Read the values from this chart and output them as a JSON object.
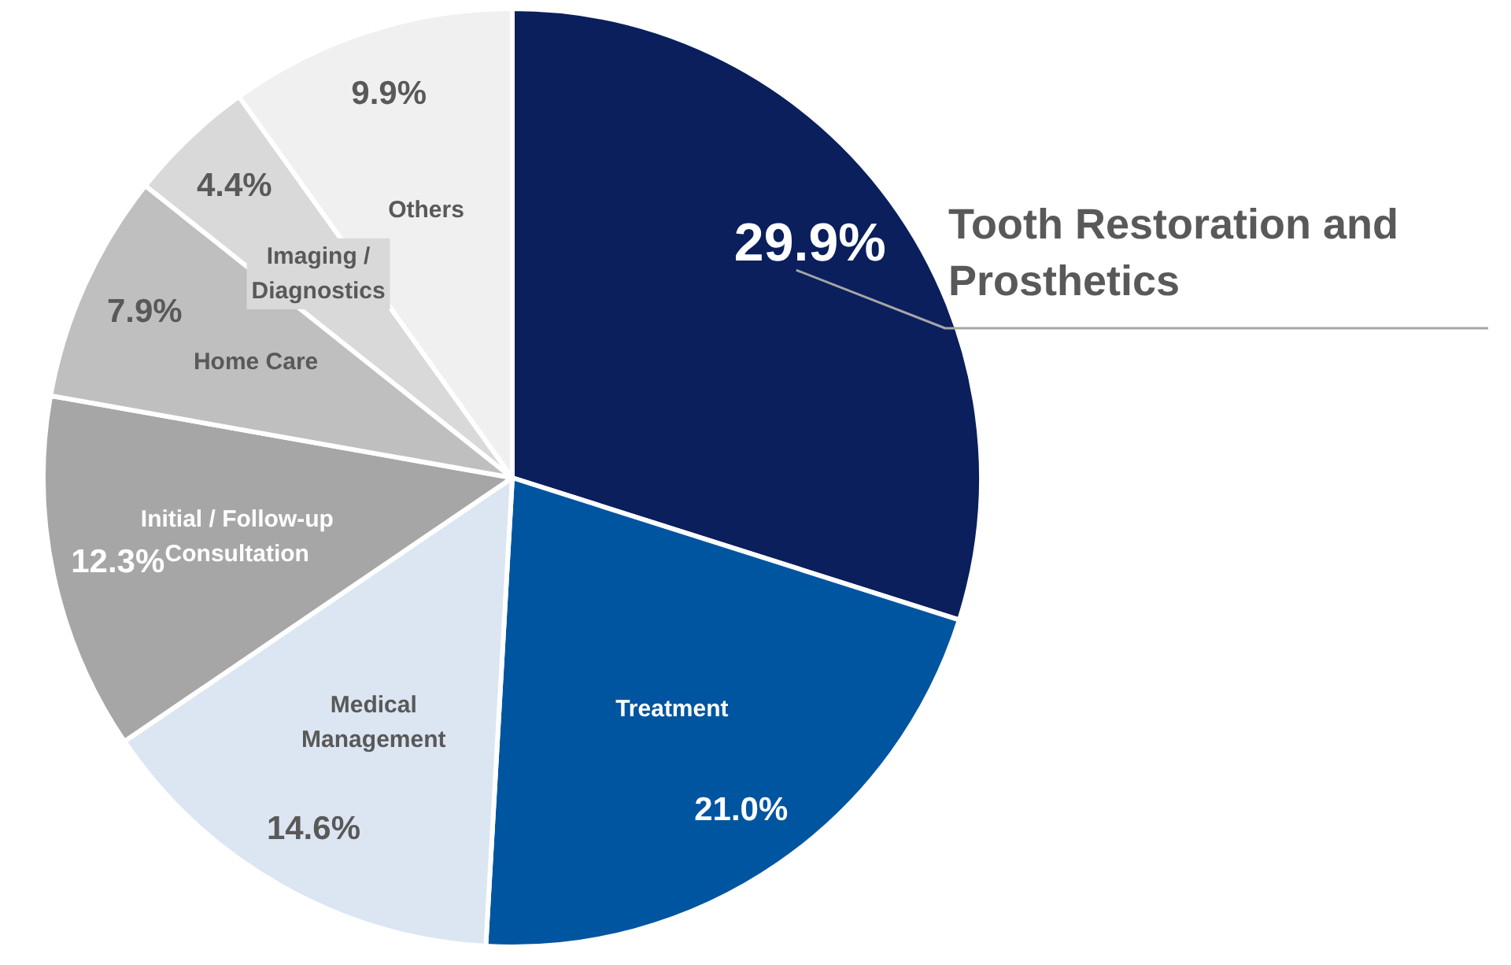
{
  "chart_data": {
    "type": "pie",
    "categories": [
      "Tooth Restoration and Prosthetics",
      "Treatment",
      "Medical Management",
      "Initial / Follow-up Consultation",
      "Home Care",
      "Imaging / Diagnostics",
      "Others"
    ],
    "values": [
      29.9,
      21.0,
      14.6,
      12.3,
      7.9,
      4.4,
      9.9
    ],
    "value_labels": [
      "29.9%",
      "21.0%",
      "14.6%",
      "12.3%",
      "7.9%",
      "4.4%",
      "9.9%"
    ],
    "colors": [
      "#0a1f5c",
      "#0055a0",
      "#dce6f2",
      "#a6a6a6",
      "#bfbfbf",
      "#d9d9d9",
      "#f0f0f0"
    ]
  }
}
